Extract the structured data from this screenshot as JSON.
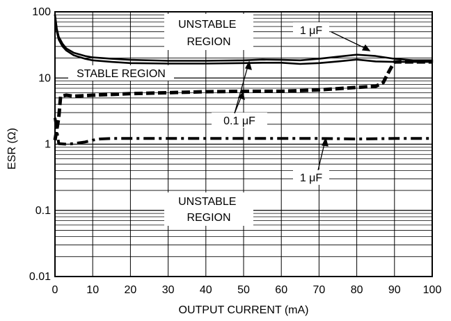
{
  "chart_data": {
    "type": "line",
    "title": "",
    "xlabel": "OUTPUT CURRENT (mA)",
    "ylabel": "ESR (Ω)",
    "xlim": [
      0,
      100
    ],
    "ylim": [
      0.01,
      100
    ],
    "y_scale": "log",
    "grid": true,
    "x_ticks": [
      0,
      10,
      20,
      30,
      40,
      50,
      60,
      70,
      80,
      90,
      100
    ],
    "x_tick_labels": [
      "0",
      "10",
      "20",
      "30",
      "40",
      "50",
      "60",
      "70",
      "80",
      "90",
      "100"
    ],
    "y_ticks": [
      0.01,
      0.1,
      1,
      10,
      100
    ],
    "y_tick_labels": [
      "0.01",
      "0.1",
      "1",
      "10",
      "100"
    ],
    "series": [
      {
        "style": "solid",
        "x": [
          0,
          0.5,
          1,
          2,
          3,
          5,
          8,
          10,
          15,
          20,
          30,
          40,
          50,
          55,
          60,
          65,
          70,
          75,
          80,
          85,
          90,
          95,
          100
        ],
        "y": [
          90,
          55,
          42,
          33,
          28,
          24,
          21.5,
          20.5,
          19.5,
          18.8,
          18.2,
          18.2,
          18.5,
          19,
          18.8,
          18.5,
          19.5,
          21,
          22.5,
          21.5,
          19.5,
          18.5,
          18.5
        ]
      },
      {
        "style": "solid",
        "x": [
          0,
          0.5,
          1,
          2,
          3,
          5,
          8,
          10,
          15,
          20,
          30,
          40,
          50,
          55,
          60,
          65,
          70,
          75,
          80,
          85,
          90,
          95,
          100
        ],
        "y": [
          90,
          50,
          38,
          30,
          26,
          22,
          19.5,
          18.5,
          17.5,
          16.8,
          16.5,
          16.5,
          16.8,
          17,
          17,
          16.3,
          16.8,
          17.8,
          19,
          17.8,
          17.5,
          17.5,
          17.5
        ]
      },
      {
        "style": "dashed",
        "x": [
          0,
          1,
          1.5,
          3,
          5,
          10,
          20,
          30,
          40,
          50,
          60,
          70,
          80,
          85,
          87,
          88,
          89,
          90,
          95,
          100
        ],
        "y": [
          1.15,
          2.5,
          5.3,
          5.5,
          5.3,
          5.5,
          5.8,
          6.0,
          6.2,
          6.3,
          6.3,
          6.6,
          7.2,
          7.5,
          8.5,
          11,
          14,
          17.5,
          17.5,
          17.5
        ]
      },
      {
        "style": "dash-dot",
        "x": [
          0,
          1,
          3,
          5,
          8,
          10,
          12,
          15,
          20,
          30,
          40,
          50,
          60,
          70,
          80,
          90,
          100
        ],
        "y": [
          2.5,
          1.02,
          1.0,
          1.02,
          1.08,
          1.15,
          1.2,
          1.22,
          1.22,
          1.22,
          1.22,
          1.22,
          1.22,
          1.22,
          1.2,
          1.22,
          1.22
        ]
      }
    ],
    "annotations": [
      {
        "text_line1": "UNSTABLE",
        "text_line2": "REGION"
      },
      {
        "text": "STABLE REGION"
      },
      {
        "text": "1 μF"
      },
      {
        "text": "0.1 μF"
      },
      {
        "text": "1 μF"
      },
      {
        "text_line1": "UNSTABLE",
        "text_line2": "REGION"
      }
    ]
  }
}
